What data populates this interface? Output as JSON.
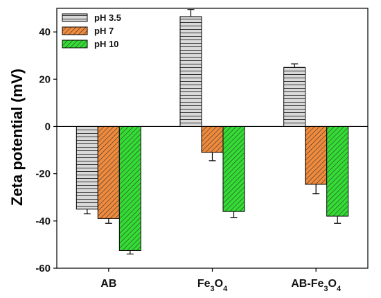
{
  "chart_data": {
    "type": "bar",
    "ylabel": "Zeta potential (mV)",
    "xlabel": "",
    "ylim": [
      -60,
      50
    ],
    "yticks": [
      -60,
      -40,
      -20,
      0,
      20,
      40
    ],
    "categories": [
      {
        "label": "AB",
        "parts": [
          {
            "text": "AB",
            "sub": false
          }
        ]
      },
      {
        "label": "Fe3O4",
        "parts": [
          {
            "text": "Fe",
            "sub": false
          },
          {
            "text": "3",
            "sub": true
          },
          {
            "text": "O",
            "sub": false
          },
          {
            "text": "4",
            "sub": true
          }
        ]
      },
      {
        "label": "AB-Fe3O4",
        "parts": [
          {
            "text": "AB-Fe",
            "sub": false
          },
          {
            "text": "3",
            "sub": true
          },
          {
            "text": "O",
            "sub": false
          },
          {
            "text": "4",
            "sub": true
          }
        ]
      }
    ],
    "series": [
      {
        "name": "pH 3.5",
        "pattern": "horizontal",
        "color": "#d9d9d9",
        "values": [
          -35,
          46.5,
          25
        ],
        "errors": [
          2,
          3,
          1.5
        ]
      },
      {
        "name": "pH 7",
        "pattern": "diagonal",
        "color": "#f08a3c",
        "values": [
          -39,
          -11,
          -24.5
        ],
        "errors": [
          2,
          3.5,
          4
        ]
      },
      {
        "name": "pH 10",
        "pattern": "diagonal",
        "color": "#33dd33",
        "values": [
          -52.5,
          -36,
          -38
        ],
        "errors": [
          1.5,
          2.5,
          3
        ]
      }
    ],
    "legend_position": "top-left",
    "zero_line": true
  }
}
